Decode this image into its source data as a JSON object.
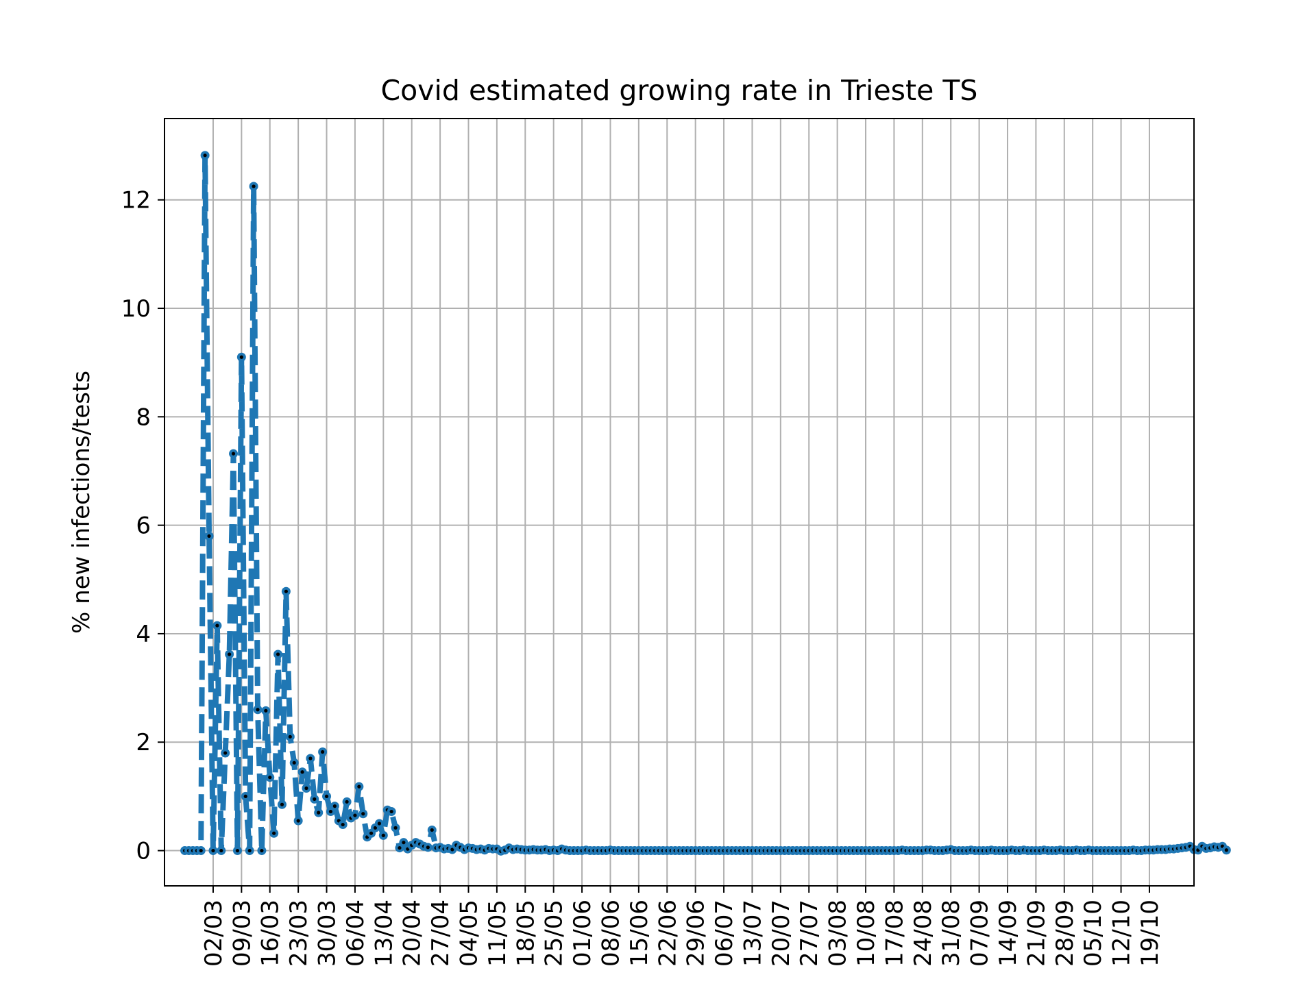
{
  "chart_data": {
    "type": "line",
    "title": "Covid estimated growing rate in Trieste TS",
    "ylabel": "% new infections/tests",
    "xlabel": "",
    "xlim": [
      "2020-02-19",
      "2020-10-30"
    ],
    "ylim": [
      -0.65,
      13.5
    ],
    "yticks": [
      0,
      2,
      4,
      6,
      8,
      10,
      12
    ],
    "xtick_dates": [
      "2020-03-02",
      "2020-03-09",
      "2020-03-16",
      "2020-03-23",
      "2020-03-30",
      "2020-04-06",
      "2020-04-13",
      "2020-04-20",
      "2020-04-27",
      "2020-05-04",
      "2020-05-11",
      "2020-05-18",
      "2020-05-25",
      "2020-06-01",
      "2020-06-08",
      "2020-06-15",
      "2020-06-22",
      "2020-06-29",
      "2020-07-06",
      "2020-07-13",
      "2020-07-20",
      "2020-07-27",
      "2020-08-03",
      "2020-08-10",
      "2020-08-17",
      "2020-08-24",
      "2020-08-31",
      "2020-09-07",
      "2020-09-14",
      "2020-09-21",
      "2020-09-28",
      "2020-10-05",
      "2020-10-12",
      "2020-10-19"
    ],
    "xtick_labels": [
      "02/03",
      "09/03",
      "16/03",
      "23/03",
      "30/03",
      "06/04",
      "13/04",
      "20/04",
      "27/04",
      "04/05",
      "11/05",
      "18/05",
      "25/05",
      "01/06",
      "08/06",
      "15/06",
      "22/06",
      "29/06",
      "06/07",
      "13/07",
      "20/07",
      "27/07",
      "03/08",
      "10/08",
      "17/08",
      "24/08",
      "31/08",
      "07/09",
      "14/09",
      "21/09",
      "28/09",
      "05/10",
      "12/10",
      "19/10"
    ],
    "grid": true,
    "line_color": "#1f77b4",
    "marker_color": "#000000",
    "series": [
      {
        "start_date": "2020-02-24",
        "values": [
          0,
          0,
          0,
          0,
          0,
          12.82,
          5.8,
          0,
          4.15,
          0,
          1.8,
          3.62,
          7.32,
          0,
          9.1,
          1.0,
          0,
          12.25,
          2.6,
          0,
          2.58,
          1.35,
          0.32,
          3.62,
          0.85,
          4.78,
          2.1,
          1.62,
          0.55,
          1.45,
          1.15,
          1.7,
          0.95,
          0.7,
          1.82,
          1.0,
          0.72,
          0.82,
          0.55,
          0.48,
          0.9,
          0.6,
          0.65,
          1.18,
          0.68,
          0.25,
          0.32,
          0.42,
          0.5,
          0.28,
          0.75,
          0.72,
          0.42,
          0.05,
          0.15,
          0.03,
          0.1,
          0.15,
          0.12,
          0.08,
          0.06,
          0.38,
          0.05,
          0.06,
          0.03,
          0.04,
          0.02,
          0.1,
          0.06,
          0.02,
          0.05,
          0.04,
          0.02,
          0.03,
          0.01,
          0.04,
          0.03,
          0.03,
          -0.01,
          0.01,
          0.05,
          0.02,
          0.03,
          0.02,
          0.01,
          0.01,
          0.02,
          0.01,
          0.01,
          0.02,
          0,
          0.01,
          0,
          0.03,
          0.01,
          0,
          0,
          0,
          0,
          0.01,
          0,
          0,
          0,
          0,
          0,
          0.01,
          0,
          0,
          0,
          0,
          0,
          0,
          0,
          0,
          0,
          0,
          0,
          0,
          0,
          0,
          0,
          0,
          0,
          0,
          0,
          0,
          0,
          0,
          0,
          0,
          0,
          0,
          0,
          0,
          0,
          0,
          0,
          0,
          0,
          0,
          0,
          0,
          0,
          0,
          0,
          0,
          0,
          0,
          0,
          0,
          0,
          0,
          0,
          0,
          0,
          0,
          0,
          0,
          0,
          0,
          0,
          0,
          0,
          0,
          0,
          0,
          0,
          0,
          0,
          0,
          0,
          0,
          0,
          0,
          0,
          0,
          0,
          0.01,
          0,
          0,
          0,
          0,
          0,
          0.01,
          0.01,
          0,
          0,
          0,
          0.01,
          0.02,
          0,
          0,
          0,
          0,
          0.01,
          0,
          0,
          0,
          0,
          0.01,
          0,
          0,
          0,
          0,
          0.01,
          0,
          0,
          0.01,
          0,
          0,
          0,
          0,
          0.01,
          0,
          0,
          0,
          0.01,
          0,
          0,
          0,
          0.01,
          0,
          0,
          0.01,
          0,
          0,
          0,
          0,
          0,
          0,
          0,
          0,
          0,
          0,
          0.01,
          0,
          0,
          0.01,
          0.01,
          0.01,
          0.02,
          0.02,
          0.02,
          0.03,
          0.03,
          0.04,
          0.05,
          0.06,
          0.08,
          0.02,
          0.01,
          0.08,
          0.04,
          0.05,
          0.07,
          0.06,
          0.08,
          0.01
        ]
      }
    ]
  }
}
